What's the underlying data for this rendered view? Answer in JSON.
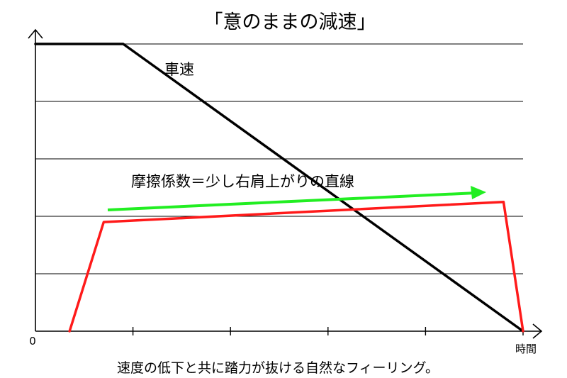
{
  "chart_data": {
    "type": "line",
    "title": "「意のままの減速」",
    "xlabel": "時間",
    "x_origin_label": "0",
    "caption": "速度の低下と共に踏力が抜ける自然なフィーリング。",
    "grid": true,
    "series": [
      {
        "name": "車速",
        "color": "#000000",
        "points": [
          [
            0.0,
            1.0
          ],
          [
            0.18,
            1.0
          ],
          [
            1.0,
            0.0
          ]
        ]
      },
      {
        "color": "#ff1a1a",
        "points": [
          [
            0.07,
            0.0
          ],
          [
            0.14,
            0.38
          ],
          [
            0.96,
            0.45
          ],
          [
            1.0,
            0.0
          ]
        ]
      }
    ],
    "annotation": {
      "text": "摩擦係数＝少し右肩上がりの直線",
      "arrow_color": "#22ee22"
    }
  }
}
